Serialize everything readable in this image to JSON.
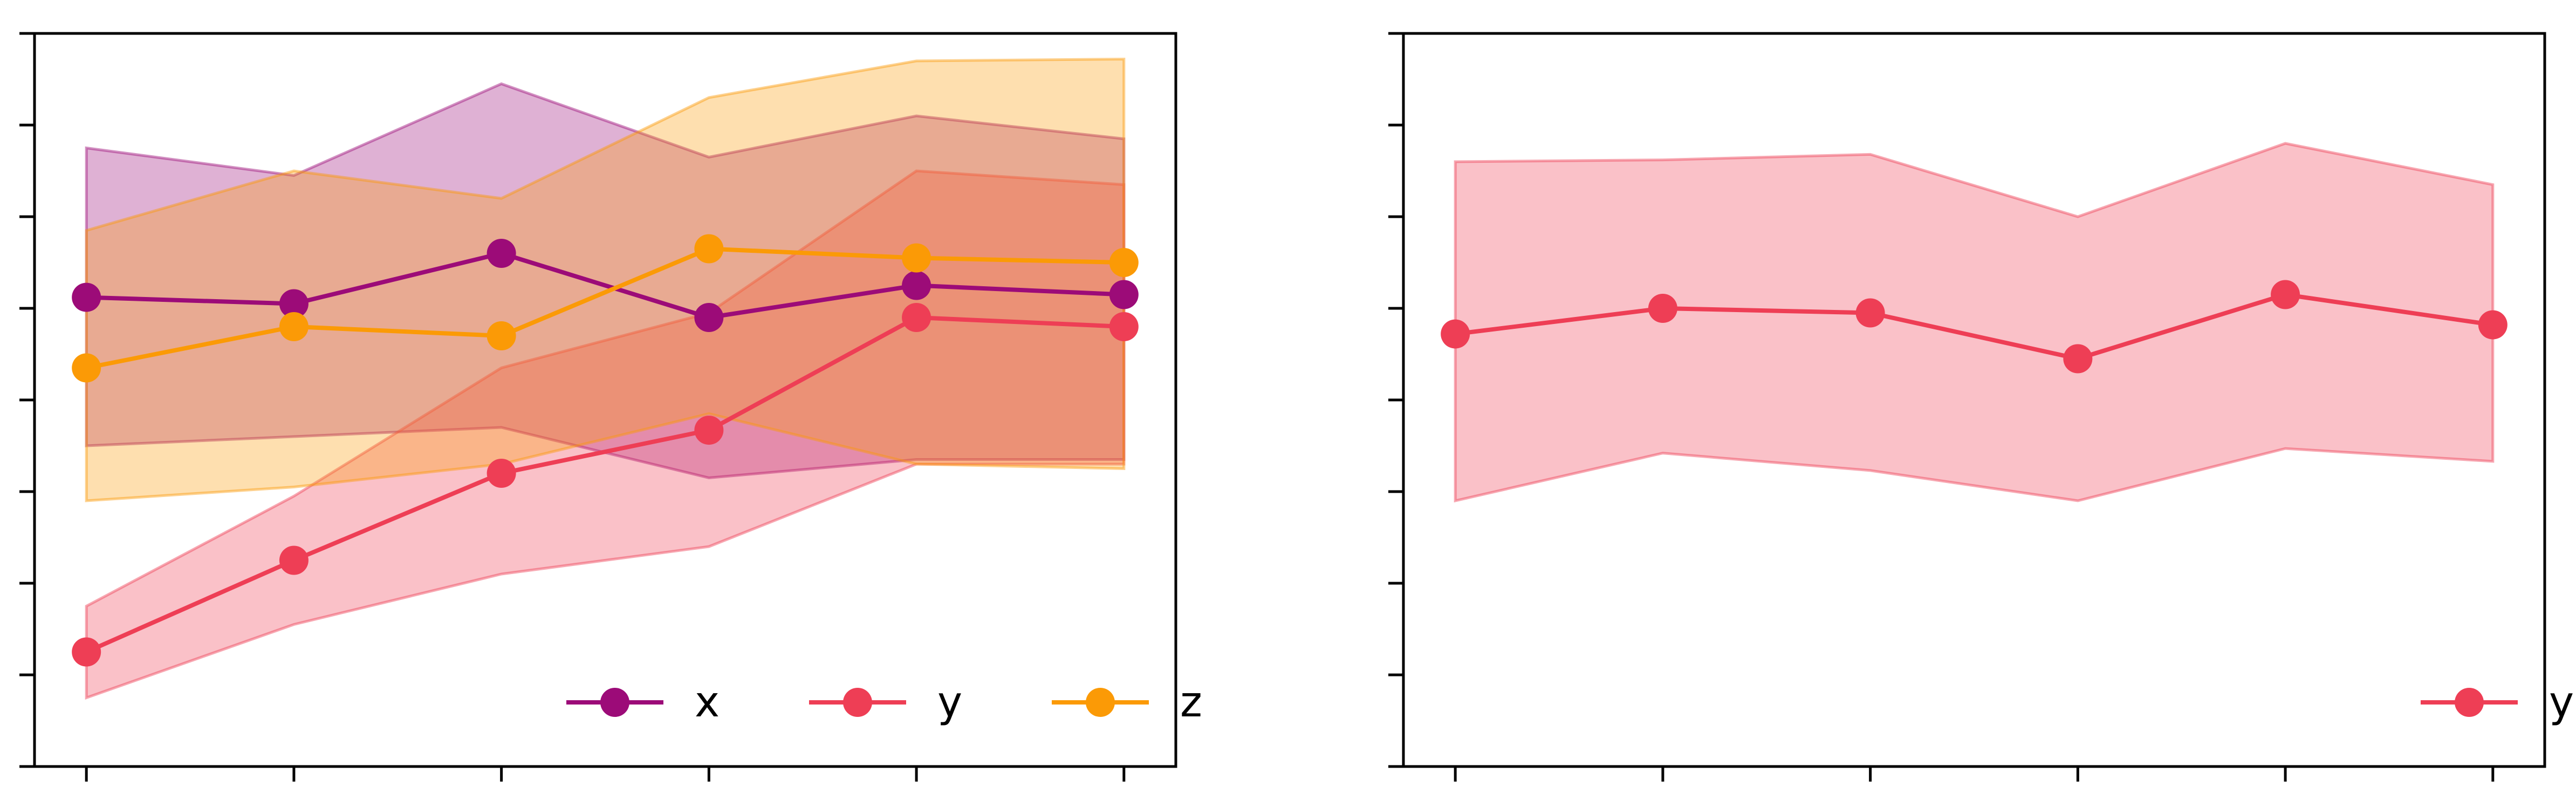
{
  "chart_data": [
    {
      "type": "line",
      "x": [
        0,
        1,
        2,
        3,
        4,
        5
      ],
      "xlim": [
        -0.25,
        5.25
      ],
      "ylim": [
        0,
        8
      ],
      "grid": false,
      "legend": {
        "position": "bottom-right",
        "entries": [
          "x",
          "y",
          "z"
        ]
      },
      "series": [
        {
          "name": "x",
          "color": "#9c0b78",
          "values": [
            5.12,
            5.05,
            5.6,
            4.9,
            5.25,
            5.15
          ],
          "band_upper": [
            6.75,
            6.45,
            7.45,
            6.65,
            7.1,
            6.85
          ],
          "band_lower": [
            3.5,
            3.6,
            3.7,
            3.15,
            3.35,
            3.35
          ]
        },
        {
          "name": "y",
          "color": "#ee3e55",
          "values": [
            1.25,
            2.25,
            3.2,
            3.67,
            4.9,
            4.8
          ],
          "band_upper": [
            1.75,
            2.95,
            4.35,
            4.95,
            6.5,
            6.35
          ],
          "band_lower": [
            0.75,
            1.55,
            2.1,
            2.4,
            3.3,
            3.3
          ]
        },
        {
          "name": "z",
          "color": "#fb9a06",
          "values": [
            4.35,
            4.8,
            4.7,
            5.65,
            5.55,
            5.5
          ],
          "band_upper": [
            5.85,
            6.5,
            6.2,
            7.3,
            7.7,
            7.72
          ],
          "band_lower": [
            2.9,
            3.05,
            3.3,
            3.85,
            3.3,
            3.25
          ]
        }
      ]
    },
    {
      "type": "line",
      "x": [
        0,
        1,
        2,
        3,
        4,
        5
      ],
      "xlim": [
        -0.25,
        5.25
      ],
      "ylim": [
        0,
        8
      ],
      "grid": false,
      "legend": {
        "position": "bottom-right",
        "entries": [
          "y"
        ]
      },
      "series": [
        {
          "name": "y",
          "color": "#ee3e55",
          "values": [
            4.72,
            5.0,
            4.95,
            4.45,
            5.15,
            4.82
          ],
          "band_upper": [
            6.6,
            6.62,
            6.68,
            6.0,
            6.8,
            6.35
          ],
          "band_lower": [
            2.9,
            3.42,
            3.23,
            2.9,
            3.47,
            3.33
          ]
        }
      ]
    }
  ]
}
